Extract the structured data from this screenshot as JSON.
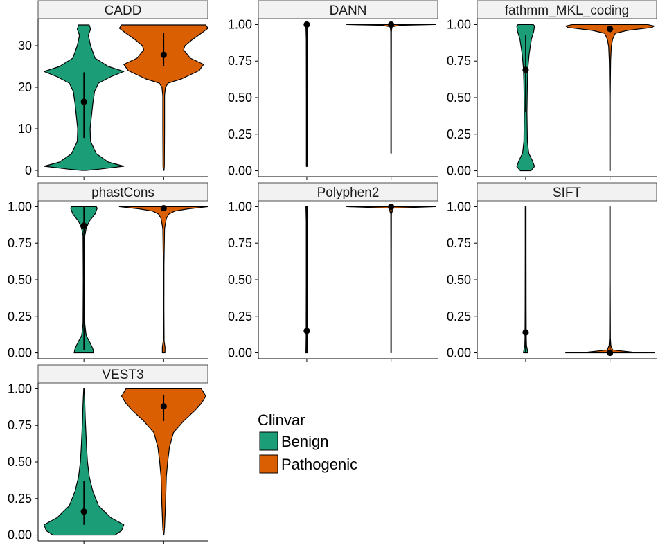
{
  "chart_data": {
    "type": "violin",
    "legend": {
      "title": "Clinvar",
      "placement": "right",
      "entries": [
        {
          "name": "Benign",
          "color": "#1b9e77"
        },
        {
          "name": "Pathogenic",
          "color": "#d95f02"
        }
      ]
    },
    "groups": [
      "Benign",
      "Pathogenic"
    ],
    "facets": [
      {
        "label": "CADD",
        "yticks": [
          "0",
          "10",
          "20",
          "30"
        ],
        "ytick_values": [
          0,
          10,
          20,
          30
        ],
        "ylim": [
          -1.5,
          36.5
        ],
        "series": [
          {
            "name": "Benign",
            "median": 16.5,
            "range": [
              7.8,
              23.6
            ],
            "density": [
              [
                0,
                0.05
              ],
              [
                0.3,
                0.35
              ],
              [
                1,
                0.9
              ],
              [
                2,
                0.55
              ],
              [
                4,
                0.28
              ],
              [
                7,
                0.15
              ],
              [
                10,
                0.14
              ],
              [
                13,
                0.17
              ],
              [
                16,
                0.2
              ],
              [
                19,
                0.24
              ],
              [
                21,
                0.33
              ],
              [
                22.5,
                0.6
              ],
              [
                23.8,
                0.9
              ],
              [
                25,
                0.55
              ],
              [
                27,
                0.25
              ],
              [
                30,
                0.15
              ],
              [
                32.5,
                0.1
              ],
              [
                34,
                0.15
              ],
              [
                35,
                0.12
              ]
            ]
          },
          {
            "name": "Pathogenic",
            "median": 27.8,
            "range": [
              25.0,
              33.0
            ],
            "density": [
              [
                0,
                0.008
              ],
              [
                1,
                0.015
              ],
              [
                10,
                0.02
              ],
              [
                18,
                0.02
              ],
              [
                20,
                0.04
              ],
              [
                21,
                0.1
              ],
              [
                22,
                0.4
              ],
              [
                23,
                0.6
              ],
              [
                24,
                0.8
              ],
              [
                25.5,
                0.9
              ],
              [
                27,
                0.6
              ],
              [
                29,
                0.45
              ],
              [
                30,
                0.48
              ],
              [
                31.5,
                0.65
              ],
              [
                33,
                0.85
              ],
              [
                34.2,
                1.0
              ],
              [
                35,
                0.95
              ]
            ]
          }
        ]
      },
      {
        "label": "DANN",
        "yticks": [
          "0.00",
          "0.25",
          "0.50",
          "0.75",
          "1.00"
        ],
        "ytick_values": [
          0,
          0.25,
          0.5,
          0.75,
          1
        ],
        "ylim": [
          -0.04,
          1.04
        ],
        "series": [
          {
            "name": "Benign",
            "median": 1.0,
            "range": [
              0.03,
              1.0
            ],
            "density": [
              [
                0.03,
                0.01
              ],
              [
                0.5,
                0.01
              ],
              [
                0.9,
                0.012
              ],
              [
                0.98,
                0.02
              ],
              [
                1.0,
                0.04
              ]
            ]
          },
          {
            "name": "Pathogenic",
            "median": 1.0,
            "range": [
              0.12,
              1.0
            ],
            "density": [
              [
                0.12,
                0.005
              ],
              [
                0.5,
                0.005
              ],
              [
                0.95,
                0.008
              ],
              [
                0.985,
                0.02
              ],
              [
                0.995,
                0.2
              ],
              [
                1.0,
                1.0
              ]
            ]
          }
        ]
      },
      {
        "label": "fathmm_MKL_coding",
        "yticks": [
          "0.00",
          "0.25",
          "0.50",
          "0.75",
          "1.00"
        ],
        "ytick_values": [
          0,
          0.25,
          0.5,
          0.75,
          1
        ],
        "ylim": [
          -0.04,
          1.04
        ],
        "series": [
          {
            "name": "Benign",
            "median": 0.69,
            "range": [
              0.4,
              0.93
            ],
            "density": [
              [
                0,
                0.12
              ],
              [
                0.03,
                0.2
              ],
              [
                0.07,
                0.15
              ],
              [
                0.12,
                0.07
              ],
              [
                0.2,
                0.04
              ],
              [
                0.4,
                0.03
              ],
              [
                0.6,
                0.04
              ],
              [
                0.7,
                0.05
              ],
              [
                0.8,
                0.08
              ],
              [
                0.9,
                0.13
              ],
              [
                0.95,
                0.18
              ],
              [
                0.99,
                0.2
              ],
              [
                1.0,
                0.17
              ]
            ]
          },
          {
            "name": "Pathogenic",
            "median": 0.97,
            "range": [
              0.94,
              0.99
            ],
            "density": [
              [
                0,
                0.005
              ],
              [
                0.5,
                0.006
              ],
              [
                0.75,
                0.015
              ],
              [
                0.85,
                0.03
              ],
              [
                0.9,
                0.06
              ],
              [
                0.94,
                0.12
              ],
              [
                0.96,
                0.4
              ],
              [
                0.98,
                0.95
              ],
              [
                0.99,
                1.0
              ],
              [
                1.0,
                0.85
              ]
            ]
          }
        ]
      },
      {
        "label": "phastCons",
        "yticks": [
          "0.00",
          "0.25",
          "0.50",
          "0.75",
          "1.00"
        ],
        "ytick_values": [
          0,
          0.25,
          0.5,
          0.75,
          1
        ],
        "ylim": [
          -0.04,
          1.04
        ],
        "series": [
          {
            "name": "Benign",
            "median": 0.87,
            "range": [
              0.02,
              1.0
            ],
            "density": [
              [
                0,
                0.22
              ],
              [
                0.03,
                0.2
              ],
              [
                0.08,
                0.12
              ],
              [
                0.12,
                0.05
              ],
              [
                0.2,
                0.02
              ],
              [
                0.5,
                0.015
              ],
              [
                0.8,
                0.02
              ],
              [
                0.85,
                0.05
              ],
              [
                0.9,
                0.12
              ],
              [
                0.95,
                0.25
              ],
              [
                0.99,
                0.3
              ],
              [
                1.0,
                0.28
              ]
            ]
          },
          {
            "name": "Pathogenic",
            "median": 0.99,
            "range": [
              0.98,
              1.0
            ],
            "density": [
              [
                0,
                0.03
              ],
              [
                0.04,
                0.03
              ],
              [
                0.08,
                0.01
              ],
              [
                0.3,
                0.006
              ],
              [
                0.6,
                0.007
              ],
              [
                0.85,
                0.02
              ],
              [
                0.92,
                0.06
              ],
              [
                0.95,
                0.12
              ],
              [
                0.97,
                0.25
              ],
              [
                0.985,
                0.55
              ],
              [
                1.0,
                1.0
              ]
            ]
          }
        ]
      },
      {
        "label": "Polyphen2",
        "yticks": [
          "0.00",
          "0.25",
          "0.50",
          "0.75",
          "1.00"
        ],
        "ytick_values": [
          0,
          0.25,
          0.5,
          0.75,
          1
        ],
        "ylim": [
          -0.04,
          1.04
        ],
        "series": [
          {
            "name": "Benign",
            "median": 0.15,
            "range": [
              0.0,
              1.0
            ],
            "density": [
              [
                0,
                0.02
              ],
              [
                0.1,
                0.015
              ],
              [
                0.5,
                0.012
              ],
              [
                0.9,
                0.012
              ],
              [
                1.0,
                0.02
              ]
            ]
          },
          {
            "name": "Pathogenic",
            "median": 1.0,
            "range": [
              0.0,
              1.0
            ],
            "density": [
              [
                0,
                0.005
              ],
              [
                0.5,
                0.005
              ],
              [
                0.95,
                0.008
              ],
              [
                0.99,
                0.05
              ],
              [
                1.0,
                1.0
              ]
            ]
          }
        ]
      },
      {
        "label": "SIFT",
        "yticks": [
          "0.00",
          "0.25",
          "0.50",
          "0.75",
          "1.00"
        ],
        "ytick_values": [
          0,
          0.25,
          0.5,
          0.75,
          1
        ],
        "ylim": [
          -0.04,
          1.04
        ],
        "series": [
          {
            "name": "Benign",
            "median": 0.14,
            "range": [
              0.0,
              1.0
            ],
            "density": [
              [
                0,
                0.05
              ],
              [
                0.02,
                0.04
              ],
              [
                0.05,
                0.02
              ],
              [
                0.1,
                0.015
              ],
              [
                0.3,
                0.012
              ],
              [
                0.7,
                0.01
              ],
              [
                1.0,
                0.01
              ]
            ]
          },
          {
            "name": "Pathogenic",
            "median": 0.0,
            "range": [
              0.0,
              1.0
            ],
            "density": [
              [
                0,
                1.0
              ],
              [
                0.005,
                0.5
              ],
              [
                0.02,
                0.06
              ],
              [
                0.05,
                0.02
              ],
              [
                0.1,
                0.01
              ],
              [
                0.5,
                0.005
              ],
              [
                1.0,
                0.005
              ]
            ]
          }
        ]
      },
      {
        "label": "VEST3",
        "yticks": [
          "0.00",
          "0.25",
          "0.50",
          "0.75",
          "1.00"
        ],
        "ytick_values": [
          0,
          0.25,
          0.5,
          0.75,
          1
        ],
        "ylim": [
          -0.04,
          1.04
        ],
        "series": [
          {
            "name": "Benign",
            "median": 0.16,
            "range": [
              0.07,
              0.37
            ],
            "density": [
              [
                0,
                0.7
              ],
              [
                0.03,
                0.85
              ],
              [
                0.07,
                0.9
              ],
              [
                0.12,
                0.6
              ],
              [
                0.2,
                0.33
              ],
              [
                0.3,
                0.2
              ],
              [
                0.4,
                0.12
              ],
              [
                0.5,
                0.08
              ],
              [
                0.6,
                0.06
              ],
              [
                0.7,
                0.045
              ],
              [
                0.8,
                0.03
              ],
              [
                0.9,
                0.02
              ],
              [
                1.0,
                0.005
              ]
            ]
          },
          {
            "name": "Pathogenic",
            "median": 0.88,
            "range": [
              0.78,
              0.96
            ],
            "density": [
              [
                0,
                0.005
              ],
              [
                0.05,
                0.02
              ],
              [
                0.2,
                0.04
              ],
              [
                0.4,
                0.06
              ],
              [
                0.5,
                0.09
              ],
              [
                0.6,
                0.13
              ],
              [
                0.7,
                0.22
              ],
              [
                0.78,
                0.45
              ],
              [
                0.85,
                0.7
              ],
              [
                0.9,
                0.85
              ],
              [
                0.95,
                0.95
              ],
              [
                1.0,
                0.85
              ]
            ]
          }
        ]
      }
    ]
  }
}
